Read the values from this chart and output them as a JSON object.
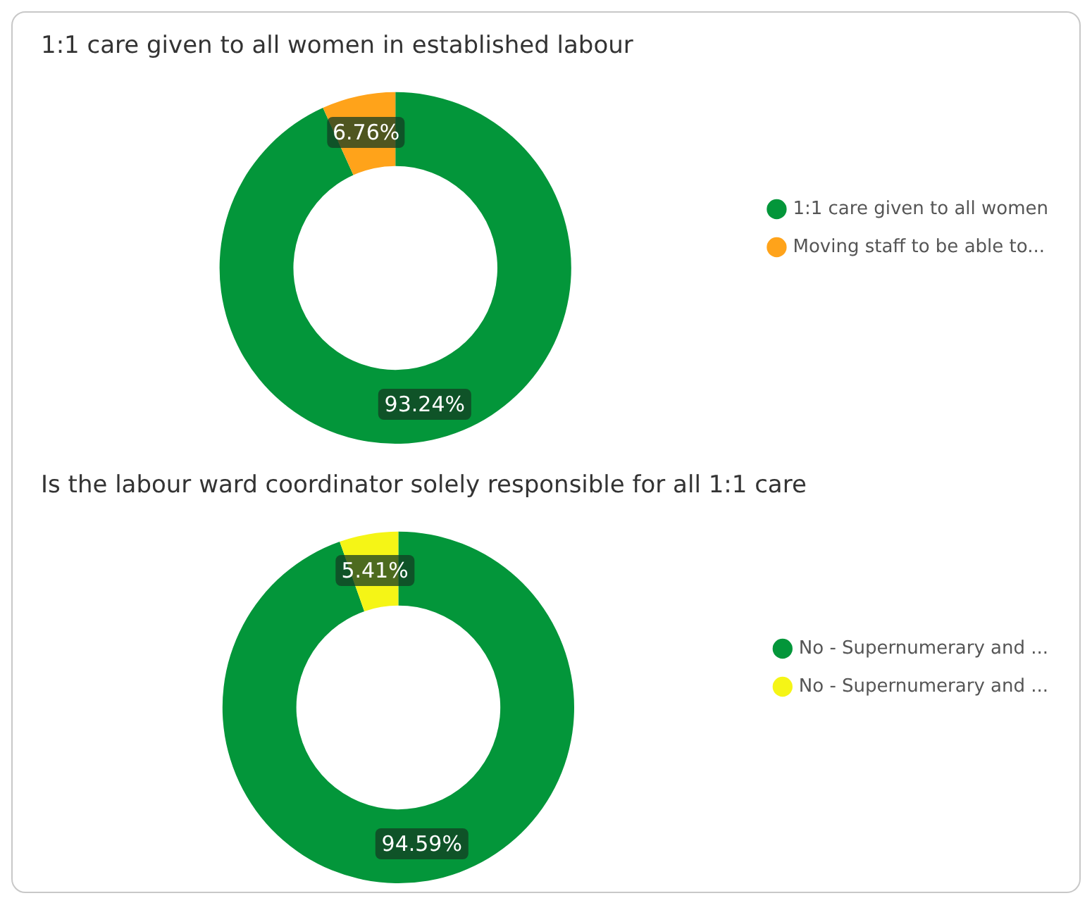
{
  "chart_data": [
    {
      "type": "donut",
      "title": "1:1 care given to all women in established labour",
      "categories": [
        "1:1 care given to all women",
        "Moving staff to be able to..."
      ],
      "values": [
        93.24,
        6.76
      ],
      "colors": [
        "#03963a",
        "#ffa31a"
      ],
      "value_labels": [
        "93.24%",
        "6.76%"
      ],
      "legend": "right"
    },
    {
      "type": "donut",
      "title": "Is the labour ward coordinator solely responsible for all 1:1 care",
      "categories": [
        "No - Supernumerary and ...",
        "No - Supernumerary and ..."
      ],
      "values": [
        94.59,
        5.41
      ],
      "colors": [
        "#03963a",
        "#f5f516"
      ],
      "value_labels": [
        "94.59%",
        "5.41%"
      ],
      "legend": "right"
    }
  ]
}
